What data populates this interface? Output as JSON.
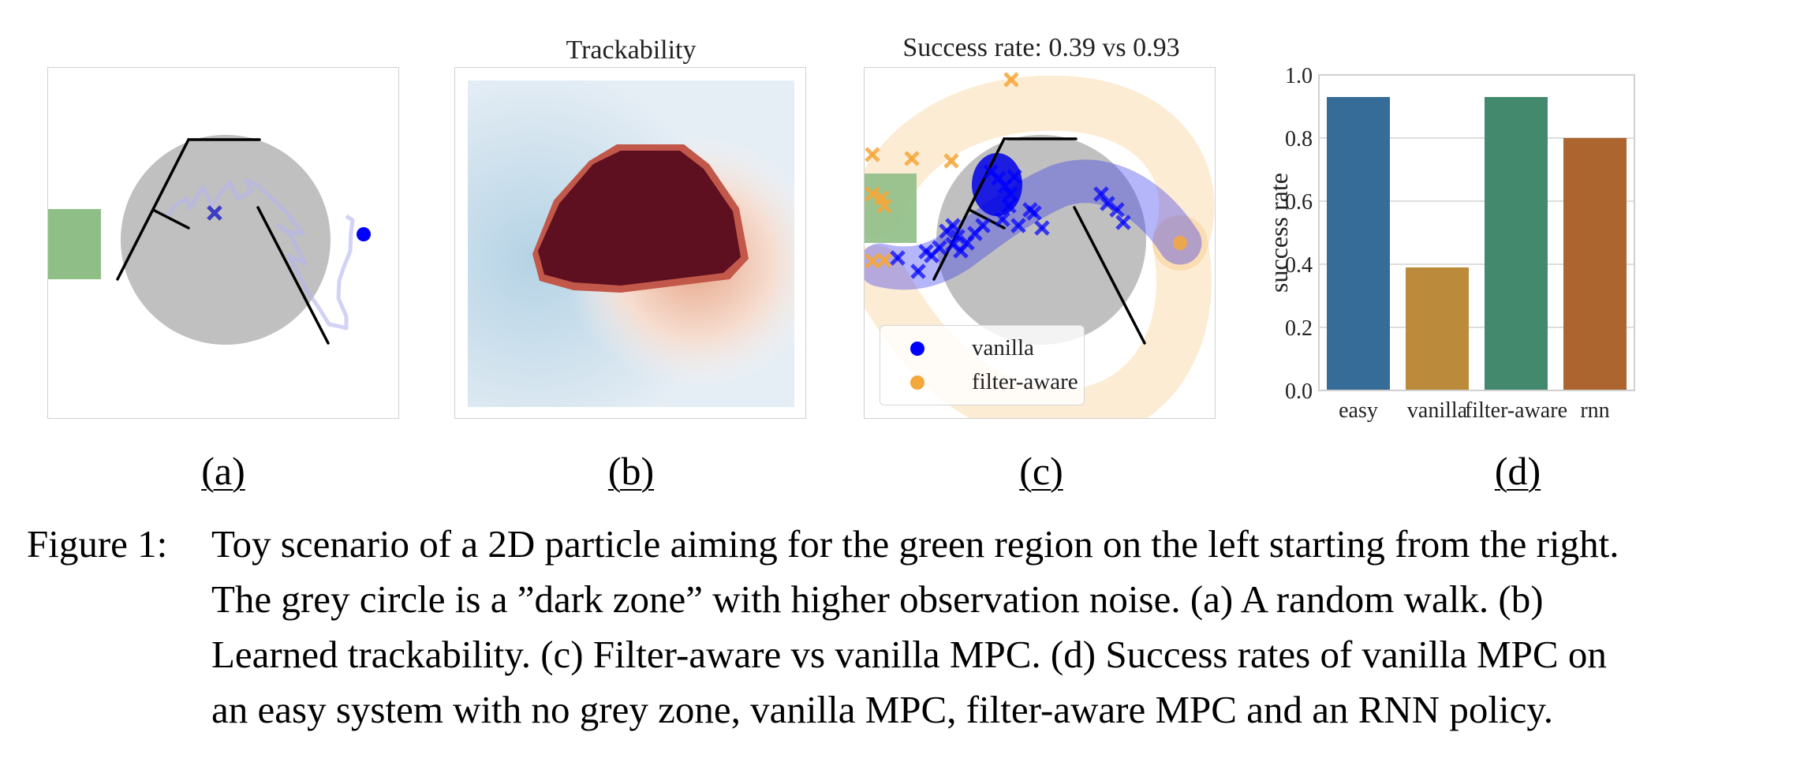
{
  "figure": {
    "panels": [
      {
        "id": "a",
        "label": "(a)",
        "title": "",
        "description": "A random walk"
      },
      {
        "id": "b",
        "label": "(b)",
        "title": "Trackability",
        "description": "Learned trackability heatmap"
      },
      {
        "id": "c",
        "label": "(c)",
        "title": "Success rate: 0.39 vs 0.93",
        "description": "Filter-aware vs vanilla MPC trajectories",
        "legend": [
          {
            "name": "vanilla",
            "color": "#0000ff"
          },
          {
            "name": "filter-aware",
            "color": "#f4a73b"
          }
        ]
      },
      {
        "id": "d",
        "label": "(d)",
        "title": "",
        "description": "Success rates"
      }
    ],
    "colors": {
      "goal_region": "#8fbf87",
      "dark_zone": "#c0c0c0",
      "walls": "#000000",
      "vanilla": "#0000ff",
      "filter_aware": "#f4a73b",
      "heat_high": "#5e0f20",
      "heat_low": "#b5d3e5"
    },
    "caption": {
      "number": "Figure 1:",
      "lines": [
        "Toy scenario of a 2D particle aiming for the green region on the left starting from the right.",
        "The grey circle is a ”dark zone” with higher observation noise. (a) A random walk. (b)",
        "Learned trackability. (c) Filter-aware vs vanilla MPC. (d) Success rates of vanilla MPC on",
        "an easy system with no grey zone, vanilla MPC, filter-aware MPC and an RNN policy."
      ]
    }
  },
  "chart_data": [
    {
      "type": "bar",
      "title": "",
      "categories": [
        "easy",
        "vanilla",
        "filter-aware",
        "rnn"
      ],
      "values": [
        0.93,
        0.39,
        0.93,
        0.8
      ],
      "colors": [
        "#356c98",
        "#bb8a3b",
        "#43896d",
        "#ad6530"
      ],
      "xlabel": "",
      "ylabel": "success rate",
      "ylim": [
        0.0,
        1.0
      ],
      "yticks": [
        "0.0",
        "0.2",
        "0.4",
        "0.6",
        "0.8",
        "1.0"
      ],
      "grid": true
    },
    {
      "type": "heatmap",
      "title": "Trackability",
      "colormap": "RdBu_r",
      "note": "high values (dark red) in central dark-zone region, low values (blue) on the left"
    }
  ]
}
